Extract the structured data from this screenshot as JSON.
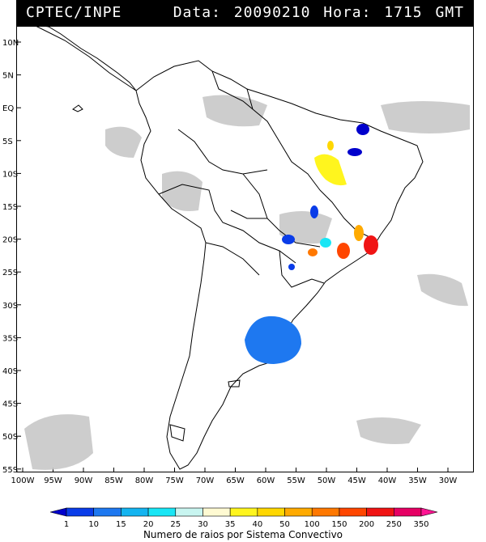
{
  "header": {
    "source": "CPTEC/INPE",
    "info": "Data: 20090210 Hora: 1715 GMT"
  },
  "axes": {
    "lat_labels": [
      "10N",
      "5N",
      "EQ",
      "5S",
      "10S",
      "15S",
      "20S",
      "25S",
      "30S",
      "35S",
      "40S",
      "45S",
      "50S",
      "55S"
    ],
    "lon_labels": [
      "100W",
      "95W",
      "90W",
      "85W",
      "80W",
      "75W",
      "70W",
      "65W",
      "60W",
      "55W",
      "50W",
      "45W",
      "40W",
      "35W",
      "30W"
    ]
  },
  "colorbar": {
    "labels": [
      "1",
      "10",
      "15",
      "20",
      "25",
      "30",
      "35",
      "40",
      "50",
      "100",
      "150",
      "200",
      "250",
      "350"
    ],
    "colors": [
      "#0000cc",
      "#0a3ce8",
      "#1e78f0",
      "#14b4f0",
      "#19e6f5",
      "#c8f5f0",
      "#fffad2",
      "#fff51e",
      "#ffd700",
      "#ffaa00",
      "#ff7800",
      "#ff4600",
      "#f01414",
      "#e60064",
      "#ff1493"
    ],
    "title": "Numero de raios por Sistema Convectivo"
  }
}
